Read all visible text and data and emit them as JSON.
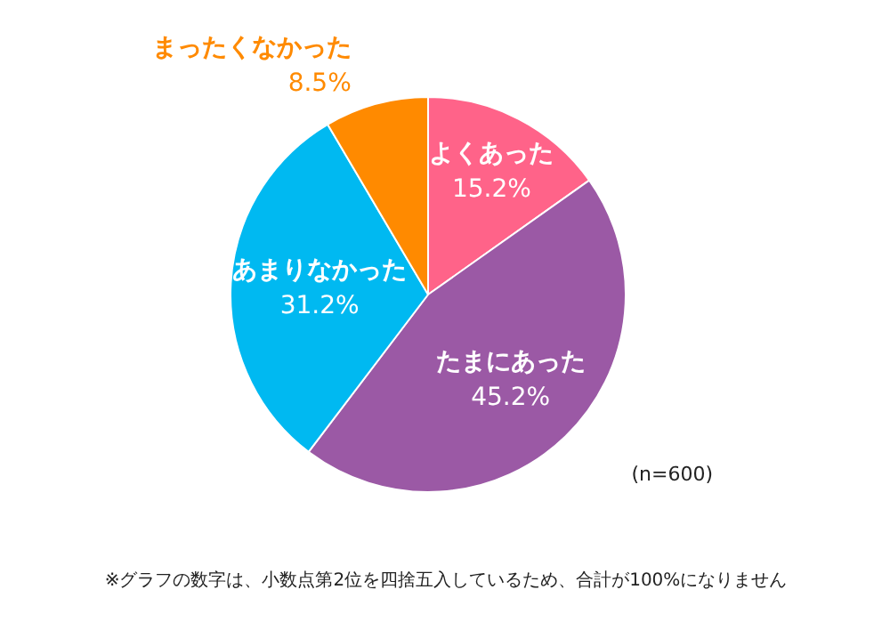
{
  "chart_data": {
    "type": "pie",
    "categories": [
      "よくあった",
      "たまにあった",
      "あまりなかった",
      "まったくなかった"
    ],
    "values": [
      15.2,
      45.2,
      31.2,
      8.5
    ],
    "colors": [
      "#ff6389",
      "#9b59a5",
      "#00b9f1",
      "#ff8a00"
    ],
    "value_labels": [
      "15.2%",
      "45.2%",
      "31.2%",
      "8.5%"
    ],
    "annotations": [
      "(n=600)",
      "※グラフの数字は、小数点第2位を四捨五入しているため、合計が100%になりません"
    ]
  }
}
